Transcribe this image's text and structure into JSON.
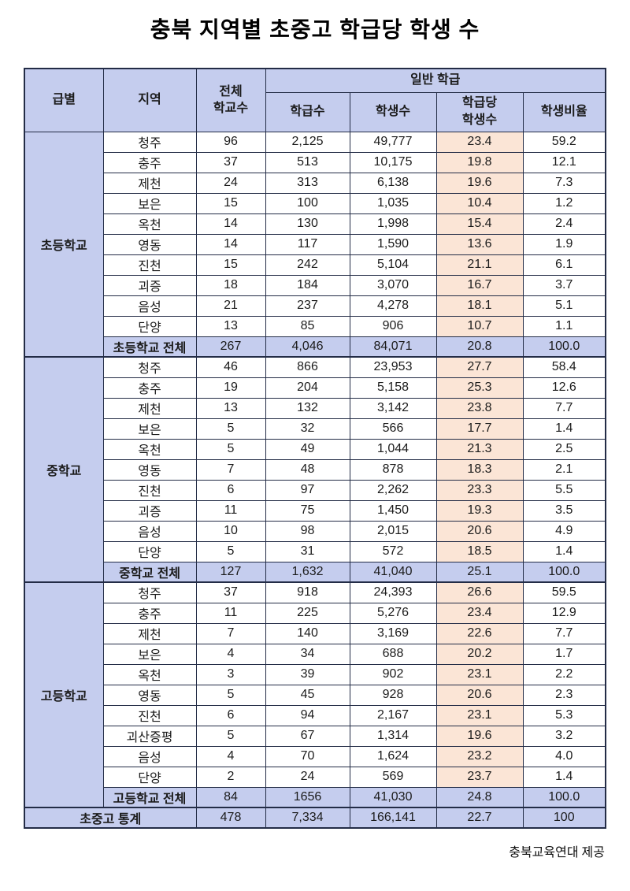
{
  "title": "충북 지역별 초중고 학급당 학생 수",
  "footer_credit": "충북교육연대 제공",
  "colors": {
    "header_bg": "#C5CDEE",
    "highlight_bg": "#FBE5D6",
    "border": "#232C46"
  },
  "chart_data": {
    "type": "table",
    "title": "충북 지역별 초중고 학급당 학생 수",
    "headers": {
      "level": "급별",
      "region": "지역",
      "total_schools": "전체\n학교수",
      "general_class": "일반 학급",
      "class_count": "학급수",
      "student_count": "학생수",
      "students_per_class": "학급당\n학생수",
      "student_ratio": "학생비율"
    },
    "sections": [
      {
        "level": "초등학교",
        "rows": [
          {
            "region": "청주",
            "values": [
              "96",
              "2,125",
              "49,777",
              "23.4",
              "59.2"
            ]
          },
          {
            "region": "충주",
            "values": [
              "37",
              "513",
              "10,175",
              "19.8",
              "12.1"
            ]
          },
          {
            "region": "제천",
            "values": [
              "24",
              "313",
              "6,138",
              "19.6",
              "7.3"
            ]
          },
          {
            "region": "보은",
            "values": [
              "15",
              "100",
              "1,035",
              "10.4",
              "1.2"
            ]
          },
          {
            "region": "옥천",
            "values": [
              "14",
              "130",
              "1,998",
              "15.4",
              "2.4"
            ]
          },
          {
            "region": "영동",
            "values": [
              "14",
              "117",
              "1,590",
              "13.6",
              "1.9"
            ]
          },
          {
            "region": "진천",
            "values": [
              "15",
              "242",
              "5,104",
              "21.1",
              "6.1"
            ]
          },
          {
            "region": "괴증",
            "values": [
              "18",
              "184",
              "3,070",
              "16.7",
              "3.7"
            ]
          },
          {
            "region": "음성",
            "values": [
              "21",
              "237",
              "4,278",
              "18.1",
              "5.1"
            ]
          },
          {
            "region": "단양",
            "values": [
              "13",
              "85",
              "906",
              "10.7",
              "1.1"
            ]
          }
        ],
        "total_label": "초등학교 전체",
        "total_values": [
          "267",
          "4,046",
          "84,071",
          "20.8",
          "100.0"
        ]
      },
      {
        "level": "중학교",
        "rows": [
          {
            "region": "청주",
            "values": [
              "46",
              "866",
              "23,953",
              "27.7",
              "58.4"
            ]
          },
          {
            "region": "충주",
            "values": [
              "19",
              "204",
              "5,158",
              "25.3",
              "12.6"
            ]
          },
          {
            "region": "제천",
            "values": [
              "13",
              "132",
              "3,142",
              "23.8",
              "7.7"
            ]
          },
          {
            "region": "보은",
            "values": [
              "5",
              "32",
              "566",
              "17.7",
              "1.4"
            ]
          },
          {
            "region": "옥천",
            "values": [
              "5",
              "49",
              "1,044",
              "21.3",
              "2.5"
            ]
          },
          {
            "region": "영동",
            "values": [
              "7",
              "48",
              "878",
              "18.3",
              "2.1"
            ]
          },
          {
            "region": "진천",
            "values": [
              "6",
              "97",
              "2,262",
              "23.3",
              "5.5"
            ]
          },
          {
            "region": "괴증",
            "values": [
              "11",
              "75",
              "1,450",
              "19.3",
              "3.5"
            ]
          },
          {
            "region": "음성",
            "values": [
              "10",
              "98",
              "2,015",
              "20.6",
              "4.9"
            ]
          },
          {
            "region": "단양",
            "values": [
              "5",
              "31",
              "572",
              "18.5",
              "1.4"
            ]
          }
        ],
        "total_label": "중학교 전체",
        "total_values": [
          "127",
          "1,632",
          "41,040",
          "25.1",
          "100.0"
        ]
      },
      {
        "level": "고등학교",
        "rows": [
          {
            "region": "청주",
            "values": [
              "37",
              "918",
              "24,393",
              "26.6",
              "59.5"
            ]
          },
          {
            "region": "충주",
            "values": [
              "11",
              "225",
              "5,276",
              "23.4",
              "12.9"
            ]
          },
          {
            "region": "제천",
            "values": [
              "7",
              "140",
              "3,169",
              "22.6",
              "7.7"
            ]
          },
          {
            "region": "보은",
            "values": [
              "4",
              "34",
              "688",
              "20.2",
              "1.7"
            ]
          },
          {
            "region": "옥천",
            "values": [
              "3",
              "39",
              "902",
              "23.1",
              "2.2"
            ]
          },
          {
            "region": "영동",
            "values": [
              "5",
              "45",
              "928",
              "20.6",
              "2.3"
            ]
          },
          {
            "region": "진천",
            "values": [
              "6",
              "94",
              "2,167",
              "23.1",
              "5.3"
            ]
          },
          {
            "region": "괴산증평",
            "values": [
              "5",
              "67",
              "1,314",
              "19.6",
              "3.2"
            ]
          },
          {
            "region": "음성",
            "values": [
              "4",
              "70",
              "1,624",
              "23.2",
              "4.0"
            ]
          },
          {
            "region": "단양",
            "values": [
              "2",
              "24",
              "569",
              "23.7",
              "1.4"
            ]
          }
        ],
        "total_label": "고등학교 전체",
        "total_values": [
          "84",
          "1656",
          "41,030",
          "24.8",
          "100.0"
        ]
      }
    ],
    "grand_total_label": "초중고 통계",
    "grand_total_values": [
      "478",
      "7,334",
      "166,141",
      "22.7",
      "100"
    ]
  }
}
